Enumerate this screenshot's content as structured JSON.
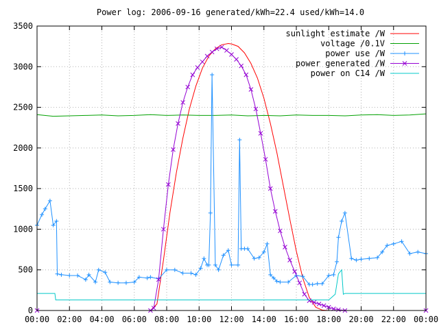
{
  "chart_data": {
    "type": "line",
    "title": "Power log: 2006-09-16 generated/kWh=22.4 used/kWh=14.0",
    "xlabel": "",
    "ylabel": "",
    "x_unit": "hours since 00:00",
    "xlim": [
      0,
      24
    ],
    "ylim": [
      0,
      3500
    ],
    "grid": true,
    "legend_position": "top-right",
    "x_ticks": [
      "00:00",
      "02:00",
      "04:00",
      "06:00",
      "08:00",
      "10:00",
      "12:00",
      "14:00",
      "16:00",
      "18:00",
      "20:00",
      "22:00",
      "00:00"
    ],
    "y_ticks": [
      "0",
      "500",
      "1000",
      "1500",
      "2000",
      "2500",
      "3000",
      "3500"
    ],
    "series": [
      {
        "name": "sunlight estimate /W",
        "color": "#ff0000",
        "marker": "none",
        "x": [
          0,
          7.0,
          7.4,
          7.8,
          8.2,
          8.6,
          9.0,
          9.4,
          9.8,
          10.2,
          10.6,
          11.0,
          11.4,
          11.8,
          12.0,
          12.4,
          12.8,
          13.2,
          13.6,
          14.0,
          14.4,
          14.8,
          15.2,
          15.6,
          16.0,
          16.4,
          16.8,
          17.2,
          17.6,
          18.0,
          24
        ],
        "y": [
          0,
          0,
          80,
          620,
          1200,
          1700,
          2120,
          2480,
          2760,
          2980,
          3130,
          3220,
          3270,
          3285,
          3280,
          3250,
          3170,
          3040,
          2860,
          2610,
          2300,
          1940,
          1530,
          1120,
          730,
          400,
          160,
          40,
          5,
          0,
          0
        ]
      },
      {
        "name": "voltage /0.1V",
        "color": "#00a000",
        "marker": "none",
        "x": [
          0,
          1,
          2,
          3,
          4,
          5,
          6,
          7,
          8,
          9,
          10,
          11,
          12,
          13,
          14,
          15,
          16,
          17,
          18,
          19,
          20,
          21,
          22,
          23,
          24
        ],
        "y": [
          2410,
          2390,
          2395,
          2400,
          2405,
          2395,
          2400,
          2410,
          2400,
          2405,
          2400,
          2400,
          2405,
          2395,
          2400,
          2395,
          2405,
          2400,
          2400,
          2395,
          2405,
          2410,
          2400,
          2405,
          2420
        ]
      },
      {
        "name": "power use /W",
        "color": "#1e90ff",
        "marker": "+",
        "x": [
          0,
          0.3,
          0.5,
          0.8,
          1.0,
          1.2,
          1.25,
          1.5,
          2.0,
          2.5,
          3.0,
          3.2,
          3.6,
          3.8,
          4.2,
          4.5,
          5.0,
          5.5,
          6.0,
          6.3,
          6.8,
          7.0,
          7.5,
          8.0,
          8.5,
          9.0,
          9.5,
          9.8,
          10.1,
          10.3,
          10.5,
          10.6,
          10.7,
          10.8,
          11.0,
          11.2,
          11.5,
          11.8,
          12.0,
          12.4,
          12.5,
          12.6,
          12.8,
          13.0,
          13.4,
          13.7,
          14.0,
          14.2,
          14.4,
          14.6,
          14.8,
          15.0,
          15.5,
          16.0,
          16.4,
          16.8,
          17.0,
          17.3,
          17.6,
          18.0,
          18.3,
          18.5,
          18.6,
          18.8,
          19.0,
          19.4,
          19.7,
          20.0,
          20.5,
          21.0,
          21.3,
          21.6,
          22.0,
          22.5,
          23.0,
          23.5,
          24.0
        ],
        "y": [
          1050,
          1180,
          1250,
          1350,
          1050,
          1100,
          450,
          440,
          430,
          430,
          380,
          440,
          350,
          500,
          470,
          350,
          340,
          340,
          350,
          410,
          400,
          410,
          390,
          500,
          500,
          460,
          460,
          440,
          520,
          640,
          560,
          560,
          1200,
          2900,
          560,
          500,
          680,
          740,
          560,
          560,
          2100,
          760,
          760,
          760,
          640,
          650,
          720,
          820,
          440,
          400,
          360,
          350,
          350,
          430,
          420,
          320,
          320,
          330,
          330,
          430,
          440,
          600,
          900,
          1100,
          1200,
          640,
          620,
          630,
          640,
          650,
          720,
          800,
          820,
          850,
          700,
          720,
          700
        ]
      },
      {
        "name": "power generated /W",
        "color": "#9400d3",
        "marker": "x",
        "x": [
          0,
          7.0,
          7.2,
          7.5,
          7.8,
          8.1,
          8.4,
          8.7,
          9.0,
          9.3,
          9.6,
          9.9,
          10.2,
          10.5,
          10.8,
          11.1,
          11.4,
          11.7,
          12.0,
          12.3,
          12.6,
          12.9,
          13.2,
          13.5,
          13.8,
          14.1,
          14.4,
          14.7,
          15.0,
          15.3,
          15.6,
          15.9,
          16.2,
          16.5,
          16.8,
          17.1,
          17.4,
          17.7,
          18.0,
          18.3,
          18.6,
          19.0,
          24
        ],
        "y": [
          0,
          0,
          30,
          380,
          1000,
          1550,
          1980,
          2300,
          2560,
          2750,
          2900,
          2990,
          3060,
          3130,
          3180,
          3220,
          3240,
          3200,
          3150,
          3090,
          3010,
          2900,
          2720,
          2480,
          2180,
          1860,
          1500,
          1220,
          980,
          780,
          620,
          480,
          340,
          200,
          120,
          100,
          80,
          60,
          40,
          20,
          10,
          0,
          0
        ]
      },
      {
        "name": "power on C14 /W",
        "color": "#00c8c8",
        "marker": "none",
        "x": [
          0,
          1.1,
          1.15,
          1.5,
          4,
          8,
          12,
          16,
          18.0,
          18.4,
          18.6,
          18.8,
          18.9,
          19.0,
          19.5,
          24
        ],
        "y": [
          210,
          210,
          130,
          130,
          130,
          130,
          130,
          130,
          130,
          200,
          450,
          500,
          200,
          210,
          210,
          210
        ]
      }
    ]
  }
}
